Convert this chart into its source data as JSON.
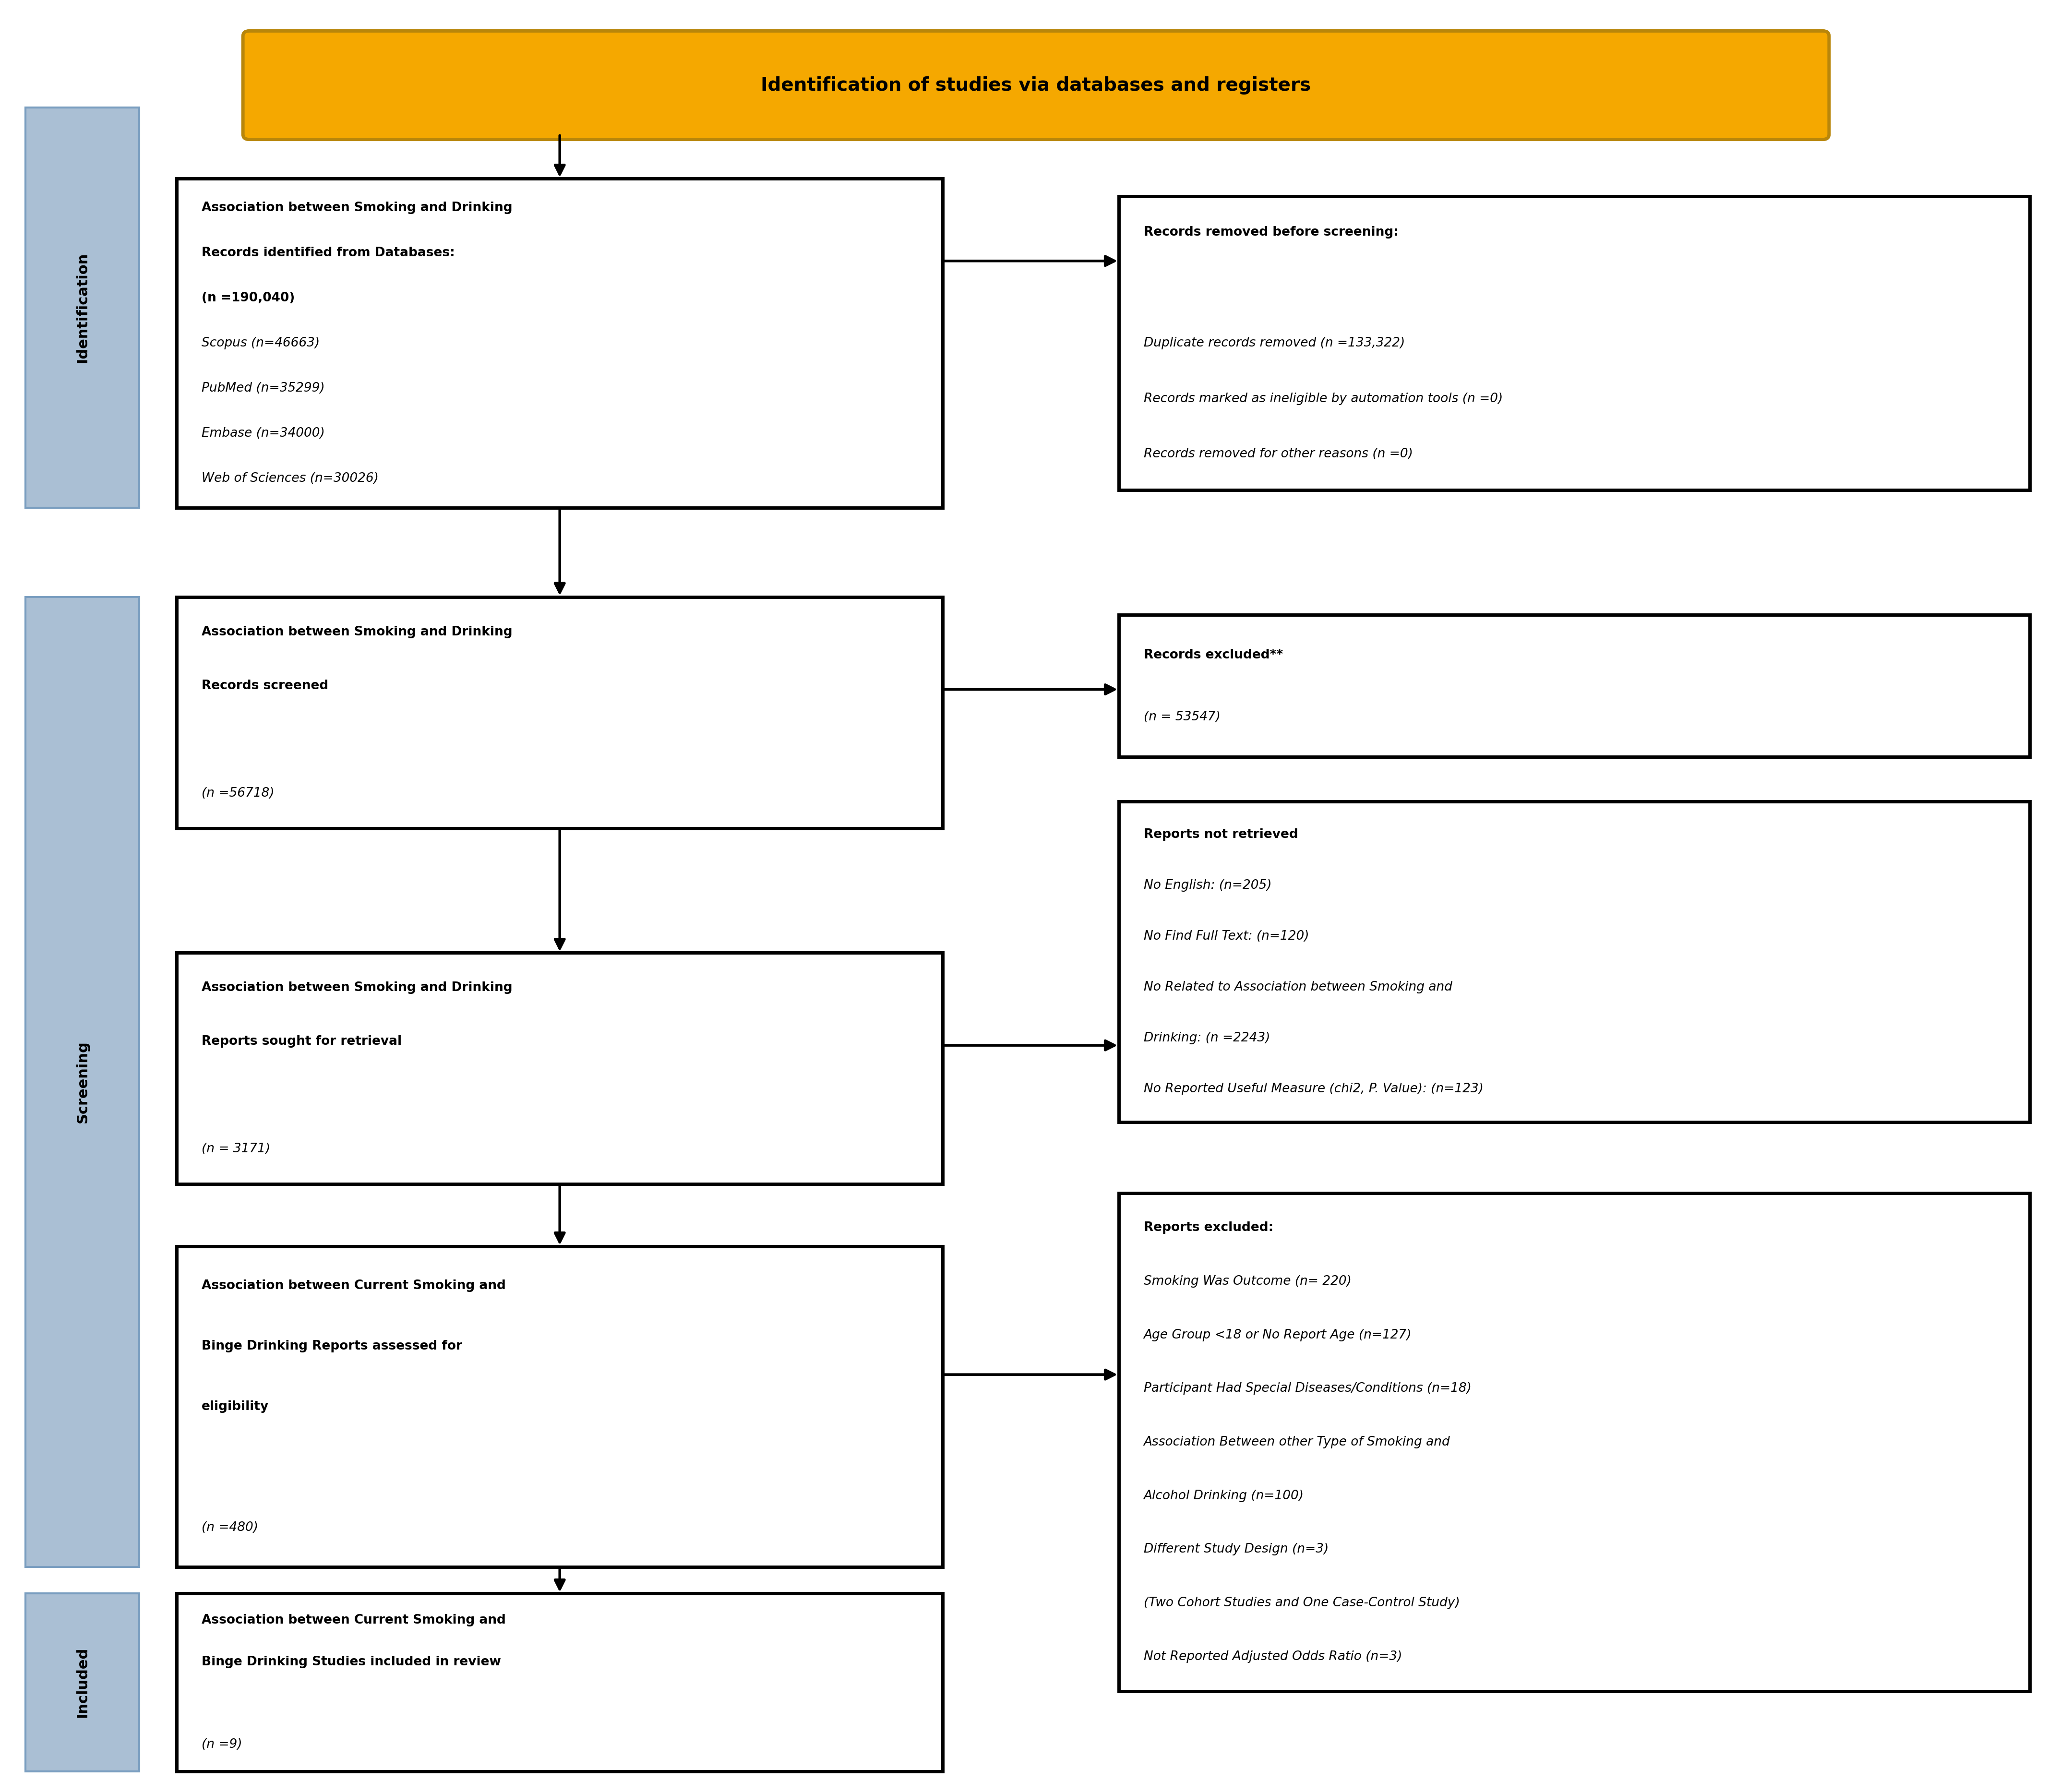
{
  "title": "Identification of studies via databases and registers",
  "title_bg": "#F5A800",
  "sidebar_color": "#AABFD4",
  "sidebar_border": "#7A9EC0",
  "box1_lines": [
    [
      "Association between Smoking and Drinking",
      true,
      false
    ],
    [
      "Records identified from Databases:",
      true,
      false
    ],
    [
      "(n =190,040)",
      true,
      false
    ],
    [
      "Scopus (n=46663)",
      false,
      true
    ],
    [
      "PubMed (n=35299)",
      false,
      true
    ],
    [
      "Embase (n=34000)",
      false,
      true
    ],
    [
      "Web of Sciences (n=30026)",
      false,
      true
    ]
  ],
  "box2_lines": [
    [
      "Records removed before screening:",
      true,
      false
    ],
    [
      "",
      false,
      false
    ],
    [
      "Duplicate records removed (n =133,322)",
      false,
      true
    ],
    [
      "Records marked as ineligible by automation tools (n =0)",
      false,
      true
    ],
    [
      "Records removed for other reasons (n =0)",
      false,
      true
    ]
  ],
  "box3_lines": [
    [
      "Association between Smoking and Drinking",
      true,
      false
    ],
    [
      "Records screened",
      true,
      false
    ],
    [
      "",
      false,
      false
    ],
    [
      "(n =56718)",
      false,
      true
    ]
  ],
  "box4_lines": [
    [
      "Records excluded**",
      true,
      false
    ],
    [
      "(n = 53547)",
      false,
      true
    ]
  ],
  "box5_lines": [
    [
      "Association between Smoking and Drinking",
      true,
      false
    ],
    [
      "Reports sought for retrieval",
      true,
      false
    ],
    [
      "",
      false,
      false
    ],
    [
      "(n = 3171)",
      false,
      true
    ]
  ],
  "box6_lines": [
    [
      "Reports not retrieved",
      true,
      false
    ],
    [
      "No English: (n=205)",
      false,
      true
    ],
    [
      "No Find Full Text: (n=120)",
      false,
      true
    ],
    [
      "No Related to Association between Smoking and",
      false,
      true
    ],
    [
      "Drinking: (n =2243)",
      false,
      true
    ],
    [
      "No Reported Useful Measure (chi2, P. Value): (n=123)",
      false,
      true
    ]
  ],
  "box7_lines": [
    [
      "Association between Current Smoking and",
      true,
      false
    ],
    [
      "Binge Drinking Reports assessed for",
      true,
      false
    ],
    [
      "eligibility",
      true,
      false
    ],
    [
      "",
      false,
      false
    ],
    [
      "(n =480)",
      false,
      true
    ]
  ],
  "box8_lines": [
    [
      "Reports excluded:",
      true,
      false
    ],
    [
      "Smoking Was Outcome (n= 220)",
      false,
      true
    ],
    [
      "Age Group <18 or No Report Age (n=127)",
      false,
      true
    ],
    [
      "Participant Had Special Diseases/Conditions (n=18)",
      false,
      true
    ],
    [
      "Association Between other Type of Smoking and",
      false,
      true
    ],
    [
      "Alcohol Drinking (n=100)",
      false,
      true
    ],
    [
      "Different Study Design (n=3)",
      false,
      true
    ],
    [
      "(Two Cohort Studies and One Case-Control Study)",
      false,
      true
    ],
    [
      "Not Reported Adjusted Odds Ratio (n=3)",
      false,
      true
    ]
  ],
  "box9_lines": [
    [
      "Association between Current Smoking and",
      true,
      false
    ],
    [
      "Binge Drinking Studies included in review",
      true,
      false
    ],
    [
      "",
      false,
      false
    ],
    [
      "(n =9)",
      false,
      true
    ]
  ]
}
